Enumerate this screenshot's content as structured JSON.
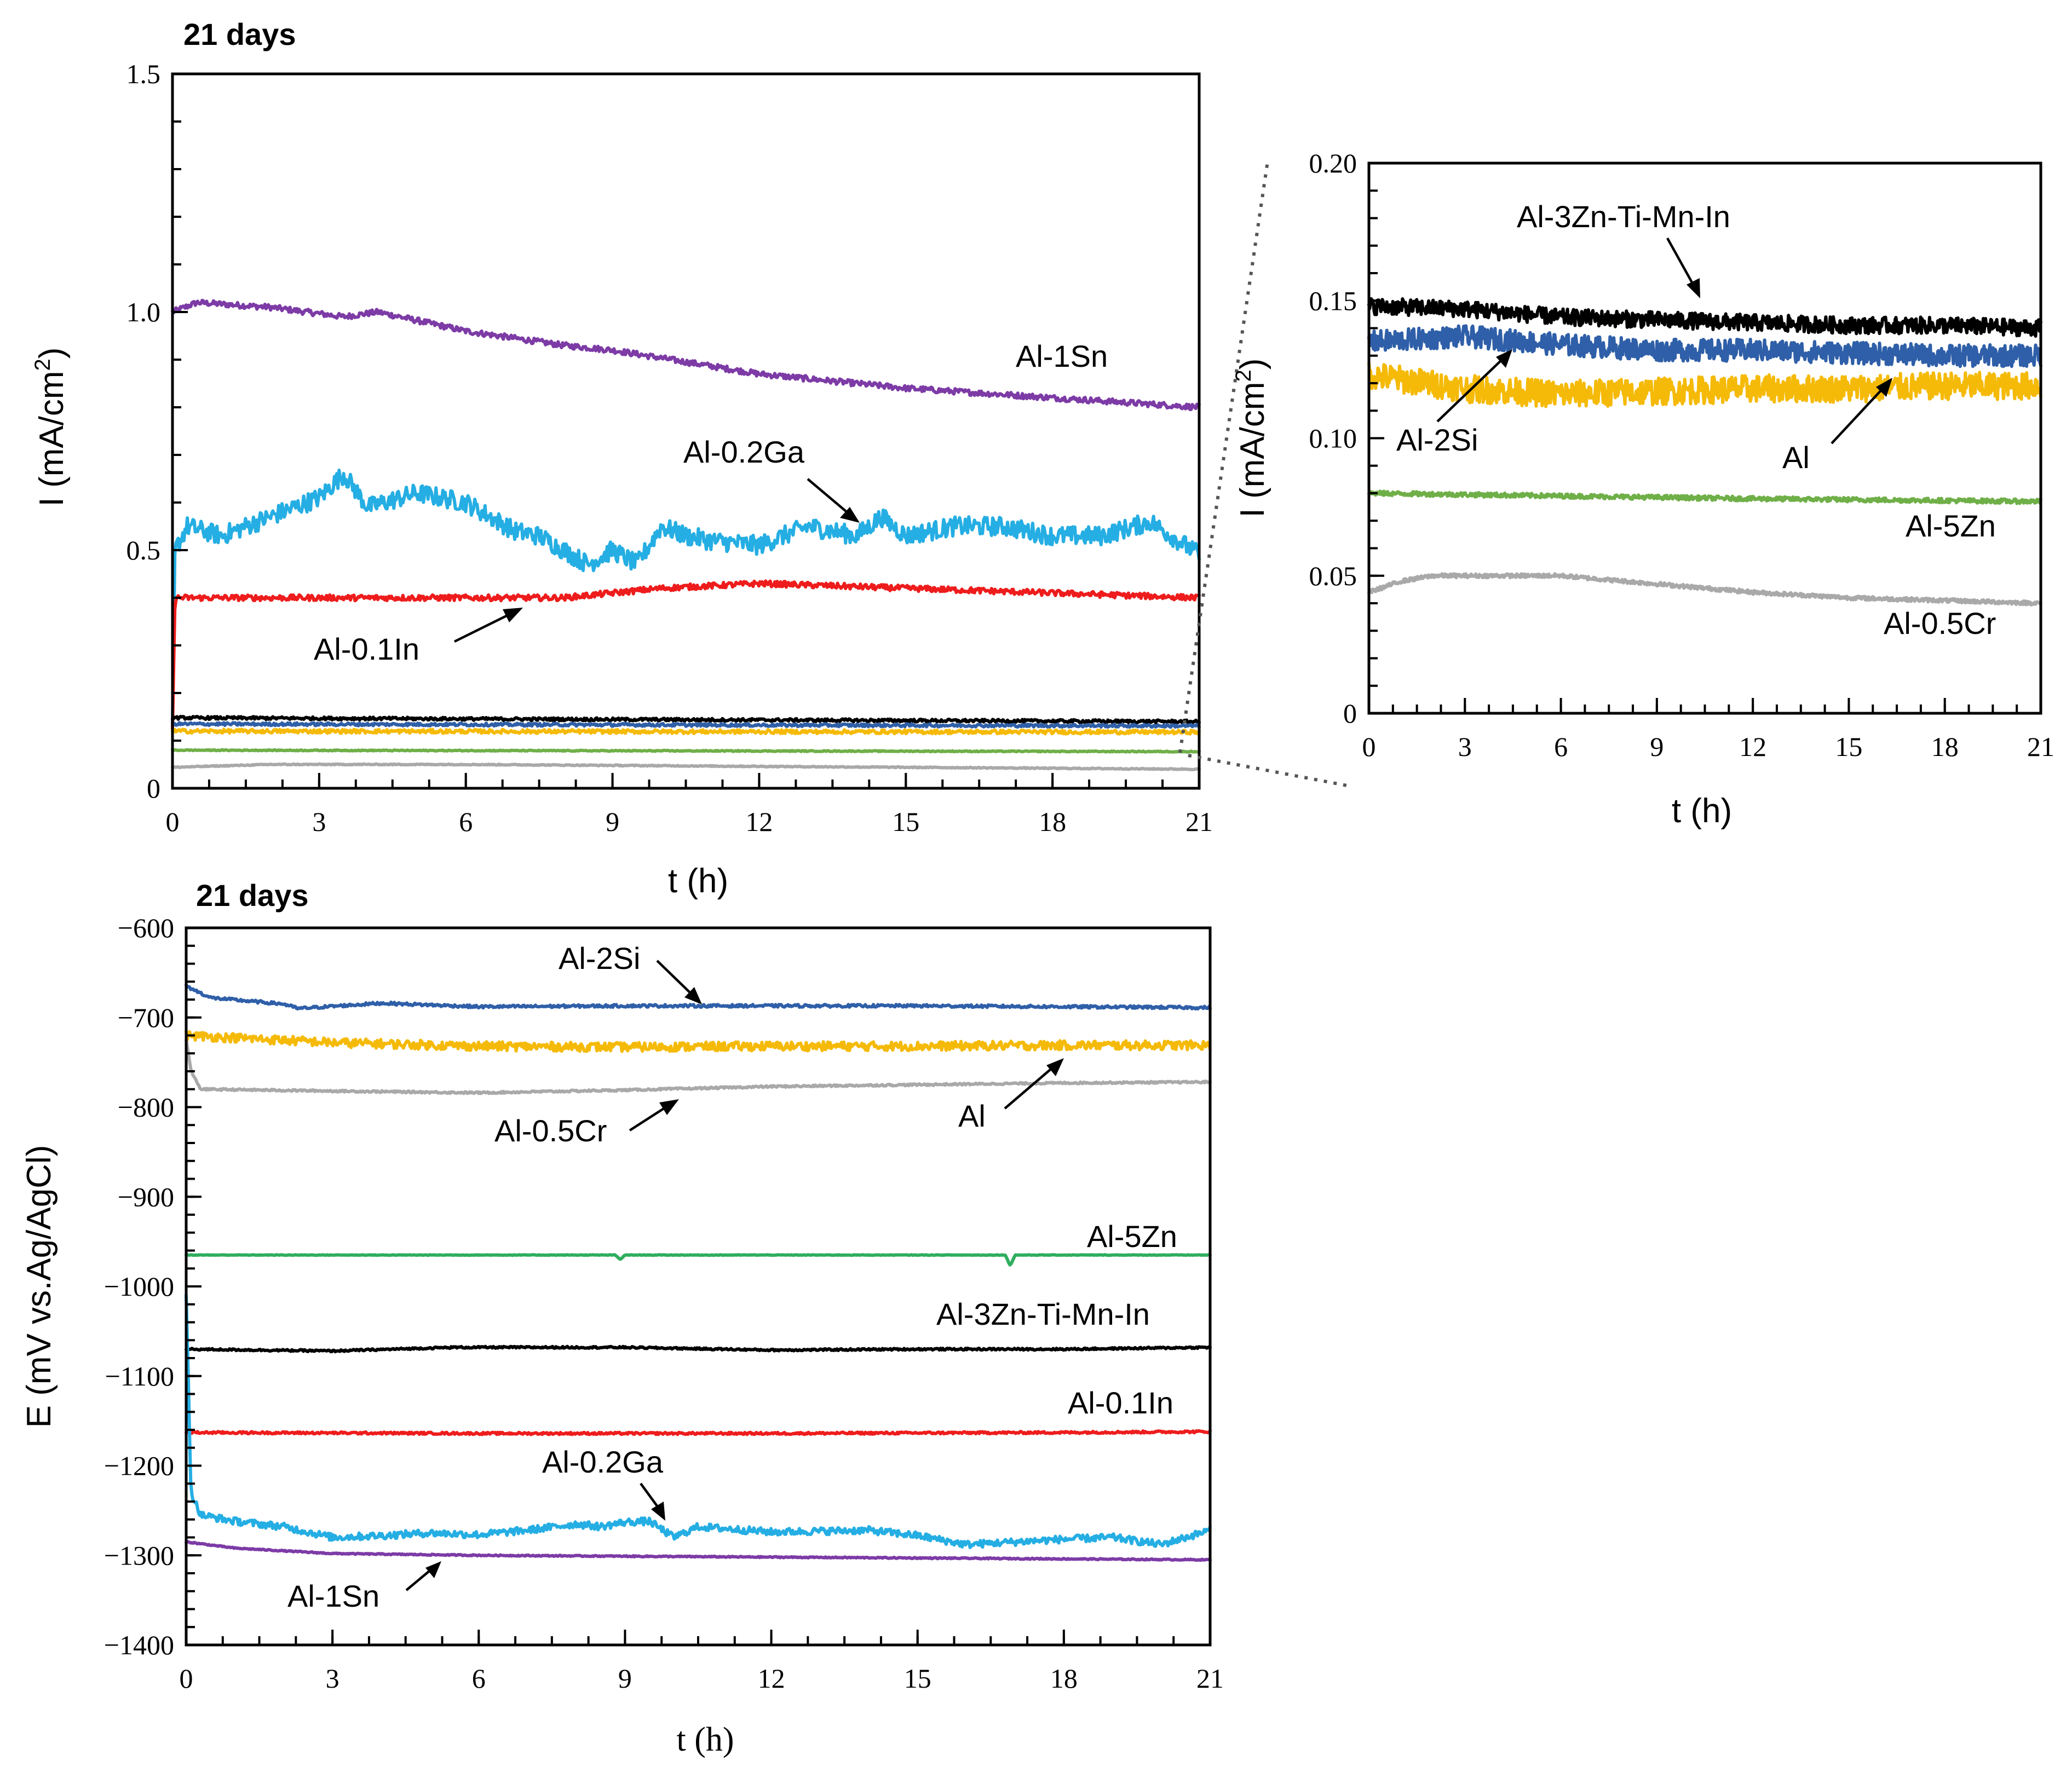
{
  "figure": {
    "colors": {
      "Al": "#F5BA07",
      "Al-2Si": "#2F5FA8",
      "Al-3Zn-Ti-Mn-In": "#000000",
      "Al-5Zn": "#6FAF48",
      "Al-0.5Cr": "#A9A9A9",
      "Al-0.1In": "#EE1C1C",
      "Al-0.2Ga": "#25AEE3",
      "Al-1Sn": "#7D3BA6"
    }
  },
  "chart_data": [
    {
      "id": "current-main",
      "type": "line",
      "title": "21 days",
      "xlabel": "t (h)",
      "ylabel_main": "I (mA/cm",
      "ylabel_sup": "2",
      "ylabel_tail": ")",
      "xlim": [
        0,
        21
      ],
      "ylim": [
        0,
        1.5
      ],
      "xticks": [
        0,
        3,
        6,
        9,
        12,
        15,
        18,
        21
      ],
      "xtick_labels": [
        "0",
        "3",
        "6",
        "9",
        "12",
        "15",
        "18",
        "21"
      ],
      "yticks": [
        0,
        0.5,
        1.0,
        1.5
      ],
      "ytick_labels": [
        "0",
        "0.5",
        "1.0",
        "1.5"
      ],
      "series": [
        {
          "name": "Al-1Sn",
          "color": "#7D3BA6",
          "noise": 0.006,
          "points": [
            [
              0,
              1.0
            ],
            [
              0.5,
              1.02
            ],
            [
              2,
              1.01
            ],
            [
              3.5,
              0.99
            ],
            [
              4.2,
              1.0
            ],
            [
              6,
              0.96
            ],
            [
              8,
              0.93
            ],
            [
              9,
              0.92
            ],
            [
              12,
              0.87
            ],
            [
              15,
              0.84
            ],
            [
              18,
              0.82
            ],
            [
              21,
              0.8
            ]
          ]
        },
        {
          "name": "Al-0.2Ga",
          "color": "#25AEE3",
          "noise": 0.02,
          "points": [
            [
              0,
              0.12
            ],
            [
              0.05,
              0.5
            ],
            [
              0.3,
              0.55
            ],
            [
              1,
              0.53
            ],
            [
              2,
              0.57
            ],
            [
              3,
              0.61
            ],
            [
              3.5,
              0.66
            ],
            [
              4,
              0.59
            ],
            [
              5,
              0.62
            ],
            [
              6,
              0.6
            ],
            [
              7,
              0.54
            ],
            [
              7.5,
              0.53
            ],
            [
              8,
              0.5
            ],
            [
              8.5,
              0.47
            ],
            [
              9,
              0.5
            ],
            [
              9.5,
              0.47
            ],
            [
              10,
              0.55
            ],
            [
              10.5,
              0.53
            ],
            [
              11,
              0.52
            ],
            [
              12,
              0.51
            ],
            [
              13,
              0.55
            ],
            [
              14,
              0.53
            ],
            [
              14.5,
              0.57
            ],
            [
              15,
              0.53
            ],
            [
              16,
              0.55
            ],
            [
              17,
              0.55
            ],
            [
              18,
              0.53
            ],
            [
              19,
              0.53
            ],
            [
              20,
              0.56
            ],
            [
              21,
              0.49
            ]
          ]
        },
        {
          "name": "Al-0.1In",
          "color": "#EE1C1C",
          "noise": 0.006,
          "points": [
            [
              0,
              0.12
            ],
            [
              0.05,
              0.4
            ],
            [
              3,
              0.4
            ],
            [
              6,
              0.4
            ],
            [
              8,
              0.4
            ],
            [
              9,
              0.41
            ],
            [
              10,
              0.42
            ],
            [
              12,
              0.43
            ],
            [
              15,
              0.42
            ],
            [
              18,
              0.41
            ],
            [
              21,
              0.4
            ]
          ]
        },
        {
          "name": "Al-3Zn-Ti-Mn-In",
          "color": "#000000",
          "noise": 0.003,
          "points": [
            [
              0,
              0.148
            ],
            [
              21,
              0.14
            ]
          ]
        },
        {
          "name": "Al-2Si",
          "color": "#2F5FA8",
          "noise": 0.003,
          "points": [
            [
              0,
              0.135
            ],
            [
              21,
              0.131
            ]
          ]
        },
        {
          "name": "Al",
          "color": "#F5BA07",
          "noise": 0.004,
          "points": [
            [
              0,
              0.12
            ],
            [
              21,
              0.118
            ]
          ]
        },
        {
          "name": "Al-5Zn",
          "color": "#6FAF48",
          "noise": 0.001,
          "points": [
            [
              0,
              0.08
            ],
            [
              21,
              0.077
            ]
          ]
        },
        {
          "name": "Al-0.5Cr",
          "color": "#A9A9A9",
          "noise": 0.001,
          "points": [
            [
              0,
              0.044
            ],
            [
              2,
              0.05
            ],
            [
              6,
              0.05
            ],
            [
              21,
              0.04
            ]
          ]
        }
      ],
      "annotations": [
        {
          "label": "Al-1Sn"
        },
        {
          "label": "Al-0.2Ga"
        },
        {
          "label": "Al-0.1In"
        }
      ]
    },
    {
      "id": "current-zoom",
      "type": "line",
      "title": "",
      "xlabel": "t (h)",
      "ylabel_main": "I (mA/cm",
      "ylabel_sup": "2",
      "ylabel_tail": ")",
      "xlim": [
        0,
        21
      ],
      "ylim": [
        0,
        0.2
      ],
      "xticks": [
        0,
        3,
        6,
        9,
        12,
        15,
        18,
        21
      ],
      "xtick_labels": [
        "0",
        "3",
        "6",
        "9",
        "12",
        "15",
        "18",
        "21"
      ],
      "yticks": [
        0,
        0.05,
        0.1,
        0.15,
        0.2
      ],
      "ytick_labels": [
        "0",
        "0.05",
        "0.10",
        "0.15",
        "0.20"
      ],
      "series": [
        {
          "name": "Al-3Zn-Ti-Mn-In",
          "color": "#000000",
          "noise": 0.003,
          "points": [
            [
              0,
              0.148
            ],
            [
              3,
              0.147
            ],
            [
              6,
              0.144
            ],
            [
              9,
              0.143
            ],
            [
              12,
              0.142
            ],
            [
              15,
              0.141
            ],
            [
              18,
              0.141
            ],
            [
              21,
              0.14
            ]
          ]
        },
        {
          "name": "Al-2Si",
          "color": "#2F5FA8",
          "noise": 0.004,
          "points": [
            [
              0,
              0.135
            ],
            [
              3,
              0.137
            ],
            [
              6,
              0.134
            ],
            [
              9,
              0.132
            ],
            [
              12,
              0.132
            ],
            [
              15,
              0.131
            ],
            [
              18,
              0.13
            ],
            [
              21,
              0.13
            ]
          ]
        },
        {
          "name": "Al",
          "color": "#F5BA07",
          "noise": 0.005,
          "points": [
            [
              0,
              0.123
            ],
            [
              3,
              0.118
            ],
            [
              6,
              0.116
            ],
            [
              9,
              0.117
            ],
            [
              12,
              0.118
            ],
            [
              15,
              0.118
            ],
            [
              18,
              0.119
            ],
            [
              21,
              0.119
            ]
          ]
        },
        {
          "name": "Al-5Zn",
          "color": "#6FAF48",
          "noise": 0.0008,
          "points": [
            [
              0,
              0.08
            ],
            [
              6,
              0.079
            ],
            [
              12,
              0.078
            ],
            [
              21,
              0.077
            ]
          ]
        },
        {
          "name": "Al-0.5Cr",
          "color": "#A9A9A9",
          "noise": 0.0007,
          "points": [
            [
              0,
              0.044
            ],
            [
              1,
              0.048
            ],
            [
              2,
              0.05
            ],
            [
              4,
              0.05
            ],
            [
              6,
              0.05
            ],
            [
              9,
              0.047
            ],
            [
              12,
              0.044
            ],
            [
              15,
              0.042
            ],
            [
              18,
              0.041
            ],
            [
              21,
              0.04
            ]
          ]
        }
      ],
      "annotations": [
        {
          "label": "Al-3Zn-Ti-Mn-In"
        },
        {
          "label": "Al-2Si"
        },
        {
          "label": "Al"
        },
        {
          "label": "Al-5Zn"
        },
        {
          "label": "Al-0.5Cr"
        }
      ]
    },
    {
      "id": "potential",
      "type": "line",
      "title": "21 days",
      "xlabel": "t (h)",
      "ylabel_main": "E (mV vs.Ag/AgCl)",
      "xlim": [
        0,
        21
      ],
      "ylim": [
        -1400,
        -600
      ],
      "xticks": [
        0,
        3,
        6,
        9,
        12,
        15,
        18,
        21
      ],
      "xtick_labels": [
        "0",
        "3",
        "6",
        "9",
        "12",
        "15",
        "18",
        "21"
      ],
      "yticks": [
        -1400,
        -1300,
        -1200,
        -1100,
        -1000,
        -900,
        -800,
        -700,
        -600
      ],
      "ytick_labels": [
        "−1400",
        "−1300",
        "−1200",
        "−1100",
        "−1000",
        "−900",
        "−800",
        "−700",
        "−600"
      ],
      "series": [
        {
          "name": "Al-2Si",
          "color": "#2F5FA8",
          "noise": 1.5,
          "points": [
            [
              0,
              -665
            ],
            [
              0.5,
              -678
            ],
            [
              2,
              -685
            ],
            [
              2.3,
              -690
            ],
            [
              4,
              -684
            ],
            [
              6,
              -688
            ],
            [
              9,
              -687
            ],
            [
              12,
              -687
            ],
            [
              15,
              -687
            ],
            [
              18,
              -688
            ],
            [
              21,
              -689
            ]
          ]
        },
        {
          "name": "Al",
          "color": "#F5BA07",
          "noise": 5,
          "points": [
            [
              0,
              -720
            ],
            [
              3,
              -728
            ],
            [
              6,
              -732
            ],
            [
              9,
              -733
            ],
            [
              12,
              -732
            ],
            [
              15,
              -732
            ],
            [
              18,
              -731
            ],
            [
              21,
              -731
            ]
          ]
        },
        {
          "name": "Al-0.5Cr",
          "color": "#A9A9A9",
          "noise": 1.0,
          "points": [
            [
              0,
              -725
            ],
            [
              0.1,
              -760
            ],
            [
              0.3,
              -780
            ],
            [
              3,
              -782
            ],
            [
              6,
              -784
            ],
            [
              9,
              -781
            ],
            [
              12,
              -777
            ],
            [
              15,
              -775
            ],
            [
              18,
              -773
            ],
            [
              21,
              -772
            ]
          ]
        },
        {
          "name": "Al-5Zn",
          "color": "#2FAE5E",
          "noise": 0.3,
          "points": [
            [
              0,
              -965
            ],
            [
              8.8,
              -965
            ],
            [
              8.9,
              -970
            ],
            [
              9.0,
              -965
            ],
            [
              16.8,
              -965
            ],
            [
              16.9,
              -977
            ],
            [
              17.0,
              -965
            ],
            [
              21,
              -965
            ]
          ]
        },
        {
          "name": "Al-3Zn-Ti-Mn-In",
          "color": "#000000",
          "noise": 1.0,
          "points": [
            [
              0,
              -1070
            ],
            [
              3,
              -1072
            ],
            [
              5.5,
              -1068
            ],
            [
              9,
              -1068
            ],
            [
              12,
              -1071
            ],
            [
              15,
              -1070
            ],
            [
              18,
              -1070
            ],
            [
              21,
              -1068
            ]
          ]
        },
        {
          "name": "Al-0.1In",
          "color": "#EE1C1C",
          "noise": 1.2,
          "points": [
            [
              0,
              -1163
            ],
            [
              6,
              -1164
            ],
            [
              12,
              -1164
            ],
            [
              18,
              -1163
            ],
            [
              21,
              -1162
            ]
          ]
        },
        {
          "name": "Al-0.2Ga",
          "color": "#25AEE3",
          "noise": 4,
          "points": [
            [
              0,
              -1010
            ],
            [
              0.1,
              -1230
            ],
            [
              0.3,
              -1255
            ],
            [
              1,
              -1262
            ],
            [
              2,
              -1268
            ],
            [
              3,
              -1280
            ],
            [
              4,
              -1278
            ],
            [
              5,
              -1275
            ],
            [
              6,
              -1277
            ],
            [
              7,
              -1272
            ],
            [
              8,
              -1265
            ],
            [
              8.5,
              -1268
            ],
            [
              9,
              -1263
            ],
            [
              9.5,
              -1262
            ],
            [
              10,
              -1280
            ],
            [
              10.5,
              -1268
            ],
            [
              11,
              -1270
            ],
            [
              12,
              -1274
            ],
            [
              13,
              -1273
            ],
            [
              14,
              -1272
            ],
            [
              15,
              -1278
            ],
            [
              16,
              -1288
            ],
            [
              17,
              -1285
            ],
            [
              18,
              -1282
            ],
            [
              19,
              -1280
            ],
            [
              20,
              -1288
            ],
            [
              21,
              -1272
            ]
          ]
        },
        {
          "name": "Al-1Sn",
          "color": "#7D3BA6",
          "noise": 0.6,
          "points": [
            [
              0,
              -1285
            ],
            [
              1,
              -1292
            ],
            [
              3,
              -1298
            ],
            [
              6,
              -1300
            ],
            [
              9,
              -1301
            ],
            [
              12,
              -1302
            ],
            [
              15,
              -1303
            ],
            [
              18,
              -1304
            ],
            [
              21,
              -1305
            ]
          ]
        }
      ],
      "annotations": [
        {
          "label": "Al-2Si"
        },
        {
          "label": "Al-0.5Cr"
        },
        {
          "label": "Al"
        },
        {
          "label": "Al-5Zn"
        },
        {
          "label": "Al-3Zn-Ti-Mn-In"
        },
        {
          "label": "Al-0.1In"
        },
        {
          "label": "Al-0.2Ga"
        },
        {
          "label": "Al-1Sn"
        }
      ]
    }
  ]
}
